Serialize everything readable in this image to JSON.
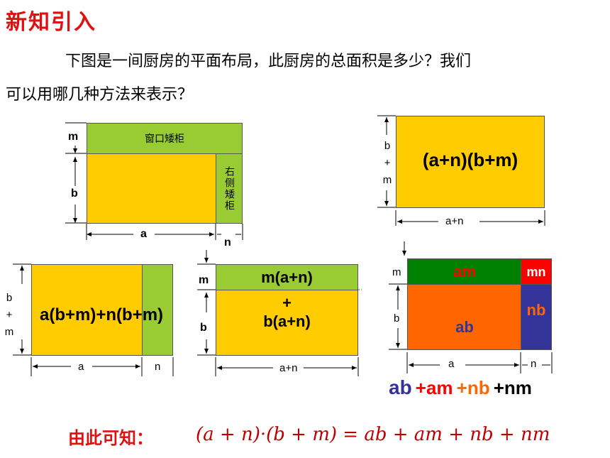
{
  "title": "新知引入",
  "paragraph": {
    "line1": "下图是一间厨房的平面布局，此厨房的总面积是多少？我们",
    "line2": "可以用哪几种方法来表示？"
  },
  "diagram1": {
    "label_m": "m",
    "label_b": "b",
    "label_a": "a",
    "label_n": "n",
    "top_cabinet": "窗口矮柜",
    "side_cabinet": "右侧矮柜"
  },
  "diagram2": {
    "expression": "(a+n)(b+m)",
    "side_label": [
      "b",
      "+",
      "m"
    ],
    "bottom_label": "a+n"
  },
  "diagram3": {
    "expression": "a(b+m)+n(b+m)",
    "side_label": [
      "b",
      "+",
      "m"
    ],
    "label_a": "a",
    "label_n": "n"
  },
  "diagram4": {
    "label_m": "m",
    "label_b": "b",
    "expr_top": "m(a+n)",
    "plus": "+",
    "expr_bottom": "b(a+n)",
    "bottom_label": "a+n"
  },
  "diagram5": {
    "label_m": "m",
    "label_b": "b",
    "label_a": "a",
    "label_n": "n",
    "am": "am",
    "mn": "mn",
    "ab": "ab",
    "nb": "nb"
  },
  "sum": {
    "ab": "ab",
    "am": "+am",
    "nb": "+nb",
    "nm": "+nm",
    "colors": {
      "ab": "#333399",
      "am": "#ff0000",
      "nb": "#ff6600",
      "nm": "#000000"
    }
  },
  "conclusion": {
    "label": "由此可知：",
    "formula": "(a + n)·(b + m) = ab + am + nb + nm"
  }
}
